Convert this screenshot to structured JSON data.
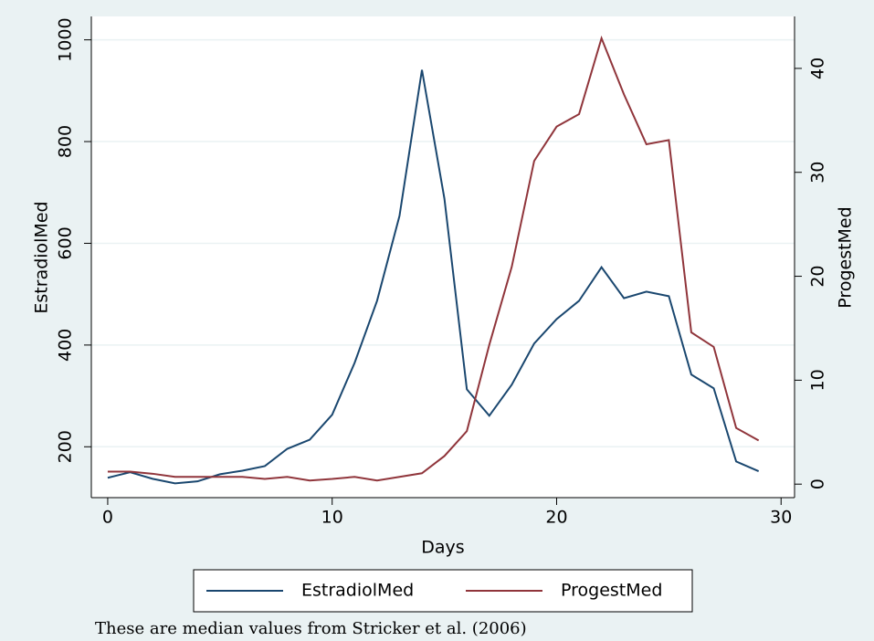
{
  "chart_data": {
    "type": "line",
    "xlabel": "Days",
    "ylabel": "EstradiolMed",
    "y2label": "ProgestMed",
    "note": "These are median values from Stricker et al. (2006)",
    "x": [
      0,
      1,
      2,
      3,
      4,
      5,
      6,
      7,
      8,
      9,
      10,
      11,
      12,
      13,
      14,
      15,
      16,
      17,
      18,
      19,
      20,
      21,
      22,
      23,
      24,
      25,
      26,
      27,
      28,
      29
    ],
    "series": [
      {
        "name": "EstradiolMed",
        "color": "#1a476f",
        "axis": "y",
        "values": [
          139,
          150,
          137,
          128,
          132,
          146,
          153,
          162,
          196,
          214,
          263,
          365,
          487,
          654,
          941,
          688,
          313,
          261,
          322,
          403,
          451,
          487,
          553,
          492,
          505,
          496,
          342,
          315,
          171,
          152
        ]
      },
      {
        "name": "ProgestMed",
        "color": "#90353b",
        "axis": "y2",
        "values": [
          1.2,
          1.2,
          1.0,
          0.7,
          0.7,
          0.7,
          0.7,
          0.5,
          0.7,
          0.35,
          0.5,
          0.7,
          0.35,
          0.7,
          1.05,
          2.7,
          5.1,
          13.4,
          20.9,
          31.1,
          34.4,
          35.6,
          42.9,
          37.5,
          32.7,
          33.1,
          14.6,
          13.2,
          5.4,
          4.2
        ]
      }
    ],
    "xlim": [
      -0.73,
      30.6
    ],
    "xticks": [
      0,
      10,
      20,
      30
    ],
    "ylim": [
      100,
      1046
    ],
    "yticks": [
      200,
      400,
      600,
      800,
      1000
    ],
    "y2lim": [
      -1.3,
      45
    ],
    "y2ticks": [
      0,
      10,
      20,
      30,
      40
    ],
    "grid": true,
    "legend": "bottom"
  }
}
